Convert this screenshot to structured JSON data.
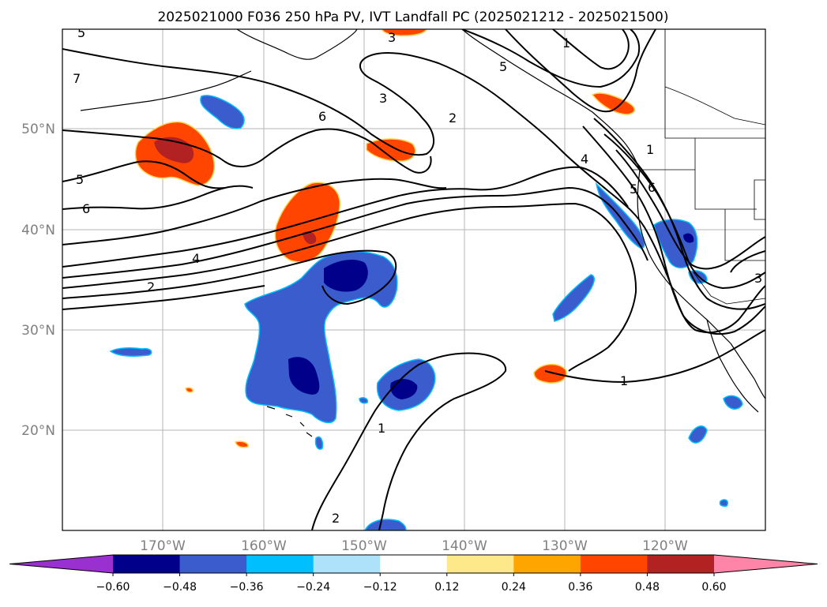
{
  "title": "2025021000 F036 250 hPa PV, IVT Landfall PC (2025021212 - 2025021500)",
  "map": {
    "lat_labels": [
      "50°N",
      "40°N",
      "30°N",
      "20°N"
    ],
    "lon_labels": [
      "170°W",
      "160°W",
      "150°W",
      "140°W",
      "130°W",
      "120°W"
    ],
    "contour_labels": [
      "5",
      "7",
      "5",
      "6",
      "3",
      "6",
      "2",
      "1",
      "3",
      "5",
      "4",
      "2",
      "1",
      "1",
      "4",
      "5",
      "6",
      "2",
      "1",
      "3"
    ]
  },
  "colorbar": {
    "colors": [
      "#9b30d0",
      "#00008b",
      "#3a5ccc",
      "#00bfff",
      "#aee2fa",
      "#ffffff",
      "#fde98a",
      "#ffa500",
      "#ff4500",
      "#b22222",
      "#ff85a8"
    ],
    "tick_labels": [
      "−0.60",
      "−0.48",
      "−0.36",
      "−0.24",
      "−0.12",
      "0.12",
      "0.24",
      "0.36",
      "0.48",
      "0.60"
    ]
  }
}
